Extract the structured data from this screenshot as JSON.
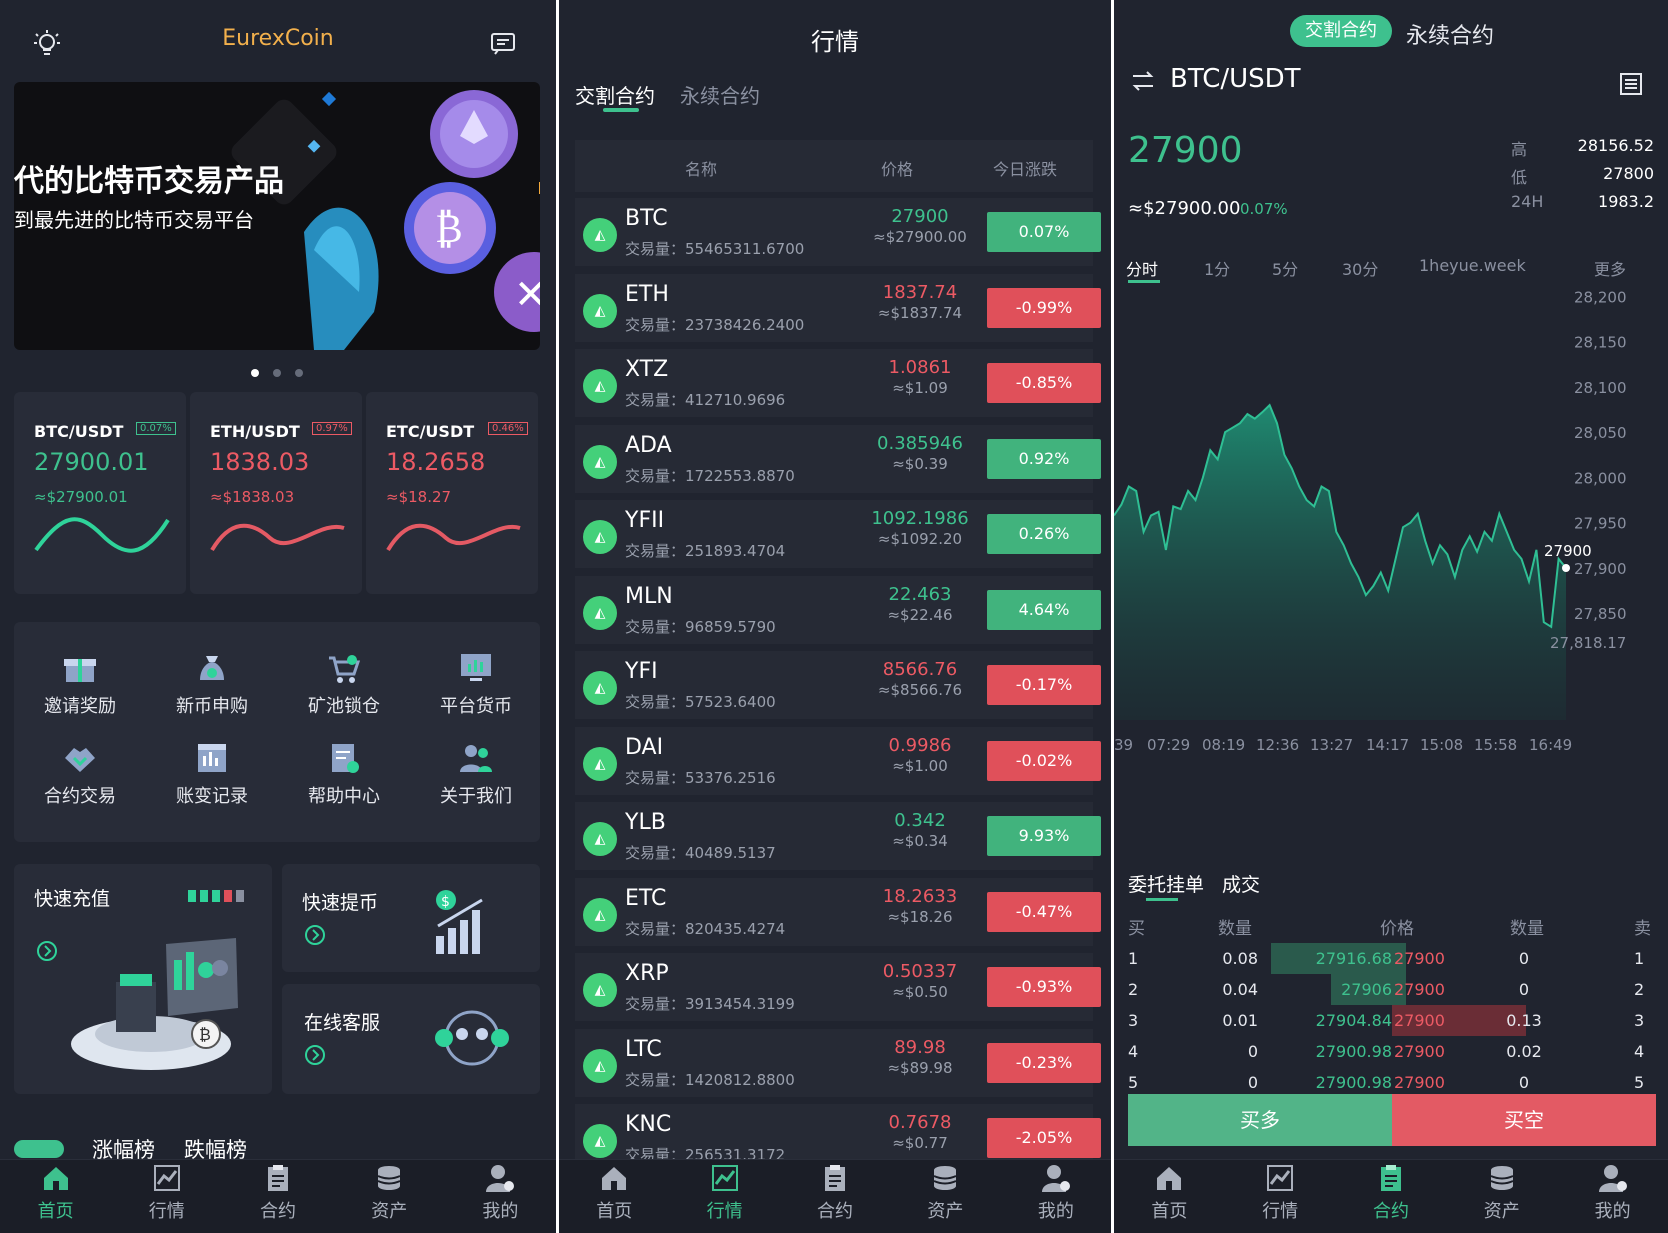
{
  "home": {
    "app_title": "EurexCoin",
    "banner": {
      "headline": "代的比特币交易产品",
      "subline": "到最先进的比特币交易平台"
    },
    "tickers": [
      {
        "pair": "BTC/USDT",
        "badge": "0.07%",
        "price": "27900.01",
        "usd": "≈$27900.01",
        "trend": "up"
      },
      {
        "pair": "ETH/USDT",
        "badge": "0.97%",
        "price": "1838.03",
        "usd": "≈$1838.03",
        "trend": "down"
      },
      {
        "pair": "ETC/USDT",
        "badge": "0.46%",
        "price": "18.2658",
        "usd": "≈$18.27",
        "trend": "down"
      }
    ],
    "menu": [
      "邀请奖励",
      "新币申购",
      "矿池锁仓",
      "平台货币",
      "合约交易",
      "账变记录",
      "帮助中心",
      "关于我们"
    ],
    "quick": {
      "deposit": "快速充值",
      "withdraw": "快速提币",
      "service": "在线客服"
    },
    "rank_tabs": [
      "涨幅榜",
      "跌幅榜"
    ]
  },
  "tabs": [
    "首页",
    "行情",
    "合约",
    "资产",
    "我的"
  ],
  "market": {
    "title": "行情",
    "subtabs": [
      "交割合约",
      "永续合约"
    ],
    "headers": [
      "名称",
      "价格",
      "今日涨跌"
    ],
    "vol_label": "交易量：",
    "rows": [
      {
        "sym": "BTC",
        "vol": "55465311.6700",
        "price": "27900",
        "usd": "≈$27900.00",
        "chg": "0.07%",
        "up": true
      },
      {
        "sym": "ETH",
        "vol": "23738426.2400",
        "price": "1837.74",
        "usd": "≈$1837.74",
        "chg": "-0.99%",
        "up": false
      },
      {
        "sym": "XTZ",
        "vol": "412710.9696",
        "price": "1.0861",
        "usd": "≈$1.09",
        "chg": "-0.85%",
        "up": false
      },
      {
        "sym": "ADA",
        "vol": "1722553.8870",
        "price": "0.385946",
        "usd": "≈$0.39",
        "chg": "0.92%",
        "up": true
      },
      {
        "sym": "YFII",
        "vol": "251893.4704",
        "price": "1092.1986",
        "usd": "≈$1092.20",
        "chg": "0.26%",
        "up": true
      },
      {
        "sym": "MLN",
        "vol": "96859.5790",
        "price": "22.463",
        "usd": "≈$22.46",
        "chg": "4.64%",
        "up": true
      },
      {
        "sym": "YFI",
        "vol": "57523.6400",
        "price": "8566.76",
        "usd": "≈$8566.76",
        "chg": "-0.17%",
        "up": false
      },
      {
        "sym": "DAI",
        "vol": "53376.2516",
        "price": "0.9986",
        "usd": "≈$1.00",
        "chg": "-0.02%",
        "up": false
      },
      {
        "sym": "YLB",
        "vol": "40489.5137",
        "price": "0.342",
        "usd": "≈$0.34",
        "chg": "9.93%",
        "up": true
      },
      {
        "sym": "ETC",
        "vol": "820435.4274",
        "price": "18.2633",
        "usd": "≈$18.26",
        "chg": "-0.47%",
        "up": false
      },
      {
        "sym": "XRP",
        "vol": "3913454.3199",
        "price": "0.50337",
        "usd": "≈$0.50",
        "chg": "-0.93%",
        "up": false
      },
      {
        "sym": "LTC",
        "vol": "1420812.8800",
        "price": "89.98",
        "usd": "≈$89.98",
        "chg": "-0.23%",
        "up": false
      },
      {
        "sym": "KNC",
        "vol": "256531.3172",
        "price": "0.7678",
        "usd": "≈$0.77",
        "chg": "-2.05%",
        "up": false
      }
    ]
  },
  "trade": {
    "toggle": [
      "交割合约",
      "永续合约"
    ],
    "pair": "BTC/USDT",
    "price": "27900",
    "usd": "≈$27900.00",
    "change": "0.07%",
    "high_label": "高",
    "high": "28156.52",
    "low_label": "低",
    "low": "27800",
    "vol_label": "24H",
    "vol": "1983.2",
    "intervals": [
      "分时",
      "1分",
      "5分",
      "30分",
      "1heyue.week",
      "更多"
    ],
    "y_ticks": [
      "28,200",
      "28,150",
      "28,100",
      "28,050",
      "28,000",
      "27,950",
      "27,900",
      "27,850"
    ],
    "x_ticks": [
      "39",
      "07:29",
      "08:19",
      "12:36",
      "13:27",
      "14:17",
      "15:08",
      "15:58",
      "16:49"
    ],
    "last_price_label": "27900",
    "min_label": "27,818.17",
    "book_tabs": [
      "委托挂单",
      "成交"
    ],
    "book_headers": [
      "买",
      "数量",
      "价格",
      "数量",
      "卖"
    ],
    "book": [
      {
        "i": "1",
        "bq": "0.08",
        "bp": "27916.68",
        "sp": "27900",
        "sq": "0",
        "j": "1"
      },
      {
        "i": "2",
        "bq": "0.04",
        "bp": "27906",
        "sp": "27900",
        "sq": "0",
        "j": "2"
      },
      {
        "i": "3",
        "bq": "0.01",
        "bp": "27904.84",
        "sp": "27900",
        "sq": "0.13",
        "j": "3"
      },
      {
        "i": "4",
        "bq": "0",
        "bp": "27900.98",
        "sp": "27900",
        "sq": "0.02",
        "j": "4"
      },
      {
        "i": "5",
        "bq": "0",
        "bp": "27900.98",
        "sp": "27900",
        "sq": "0",
        "j": "5"
      }
    ],
    "buy_btn": "买多",
    "sell_btn": "买空"
  },
  "colors": {
    "bg": "#20242f",
    "green": "#3ec18e",
    "red": "#ec5a64"
  }
}
